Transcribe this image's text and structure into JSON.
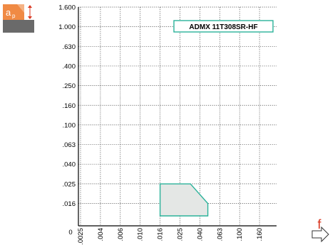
{
  "chart_data": {
    "type": "area",
    "title": "",
    "xlabel": "f",
    "ylabel": "",
    "x_axis_scale": "categorical (log-like steps)",
    "y_axis_scale": "categorical (log-like steps)",
    "x_ticks": [
      ".0025",
      ".004",
      ".006",
      ".010",
      ".016",
      ".025",
      ".040",
      ".063",
      ".100",
      ".160"
    ],
    "y_ticks": [
      "1.600",
      "1.000",
      ".630",
      ".400",
      ".250",
      ".160",
      ".100",
      ".063",
      ".040",
      ".025",
      ".016"
    ],
    "origin_label": "0",
    "grid": true,
    "grid_style": "dotted",
    "series": [
      {
        "name": "ADMX 11T308SR-HF",
        "fill_color": "#e4e7e5",
        "stroke_color": "#2bb29a",
        "polygon": [
          {
            "x": 0.016,
            "y": 0.025
          },
          {
            "x": 0.032,
            "y": 0.025
          },
          {
            "x": 0.048,
            "y": 0.016
          },
          {
            "x": 0.048,
            "y": 0.012
          },
          {
            "x": 0.016,
            "y": 0.012
          }
        ]
      }
    ],
    "ap_icon_label": "a",
    "ap_icon_subscript": "p",
    "colors": {
      "accent": "#2bb29a",
      "area_fill": "#e4e7e5",
      "ap_icon": "#f08a44",
      "f_label": "#d9361f"
    }
  }
}
